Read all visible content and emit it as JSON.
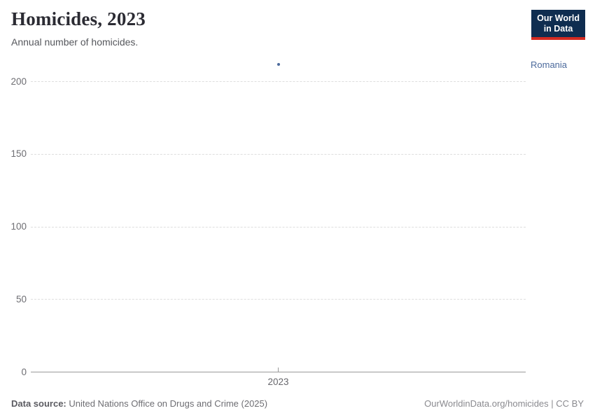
{
  "header": {
    "title": "Homicides, 2023",
    "subtitle": "Annual number of homicides.",
    "logo": {
      "line1": "Our World",
      "line2": "in Data"
    }
  },
  "colors": {
    "logo_navy": "#0f2d50",
    "logo_red": "#d42b21",
    "series_blue": "#4c6a9c",
    "gridline": "#dedede",
    "axis": "#9a9a9a"
  },
  "chart_data": {
    "type": "scatter",
    "title": "Homicides, 2023",
    "subtitle": "Annual number of homicides.",
    "categories": [
      "2023"
    ],
    "series": [
      {
        "name": "Romania",
        "x": [
          2023
        ],
        "values": [
          212
        ],
        "color": "#4c6a9c"
      }
    ],
    "x_ticks": [
      "2023"
    ],
    "y_ticks": [
      0,
      50,
      100,
      150,
      200
    ],
    "ylim": [
      0,
      212
    ],
    "xlabel": "",
    "ylabel": "",
    "grid": "horizontal-dashed",
    "legend_position": "right-of-plot"
  },
  "footer": {
    "source_label": "Data source:",
    "source_text": " United Nations Office on Drugs and Crime (2025)",
    "attribution": "OurWorldinData.org/homicides | CC BY"
  }
}
